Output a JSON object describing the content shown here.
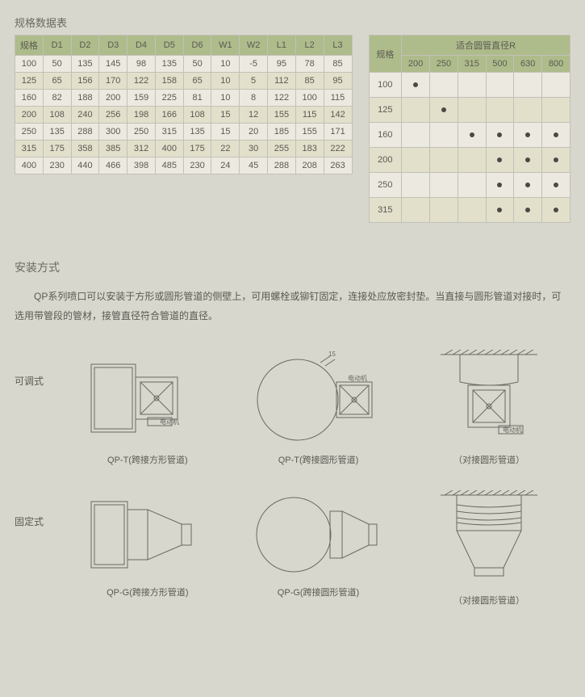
{
  "specTable": {
    "title": "规格数据表",
    "headers": [
      "规格",
      "D1",
      "D2",
      "D3",
      "D4",
      "D5",
      "D6",
      "W1",
      "W2",
      "L1",
      "L2",
      "L3"
    ],
    "rows": [
      [
        "100",
        "50",
        "135",
        "145",
        "98",
        "135",
        "50",
        "10",
        "-5",
        "95",
        "78",
        "85"
      ],
      [
        "125",
        "65",
        "156",
        "170",
        "122",
        "158",
        "65",
        "10",
        "5",
        "112",
        "85",
        "95"
      ],
      [
        "160",
        "82",
        "188",
        "200",
        "159",
        "225",
        "81",
        "10",
        "8",
        "122",
        "100",
        "115"
      ],
      [
        "200",
        "108",
        "240",
        "256",
        "198",
        "166",
        "108",
        "15",
        "12",
        "155",
        "115",
        "142"
      ],
      [
        "250",
        "135",
        "288",
        "300",
        "250",
        "315",
        "135",
        "15",
        "20",
        "185",
        "155",
        "171"
      ],
      [
        "315",
        "175",
        "358",
        "385",
        "312",
        "400",
        "175",
        "22",
        "30",
        "255",
        "183",
        "222"
      ],
      [
        "400",
        "230",
        "440",
        "466",
        "398",
        "485",
        "230",
        "24",
        "45",
        "288",
        "208",
        "263"
      ]
    ],
    "altRows": [
      1,
      3,
      5
    ]
  },
  "rTable": {
    "cornerLabel": "规格",
    "headerTop": "适合圆管直径R",
    "rHeaders": [
      "200",
      "250",
      "315",
      "500",
      "630",
      "800"
    ],
    "rowLabels": [
      "100",
      "125",
      "160",
      "200",
      "250",
      "315"
    ],
    "dots": [
      [
        true,
        false,
        false,
        false,
        false,
        false
      ],
      [
        false,
        true,
        false,
        false,
        false,
        false
      ],
      [
        false,
        false,
        true,
        true,
        true,
        true
      ],
      [
        false,
        false,
        false,
        true,
        true,
        true
      ],
      [
        false,
        false,
        false,
        true,
        true,
        true
      ],
      [
        false,
        false,
        false,
        true,
        true,
        true
      ]
    ],
    "altRows": [
      1,
      3,
      5
    ]
  },
  "section": {
    "title": "安装方式",
    "text": "QP系列喷口可以安装于方形或圆形管道的侧壁上，可用螺栓或铆钉固定，连接处应放密封垫。当直接与圆形管道对接时，可选用带管段的管材，接管直径符合管道的直径。"
  },
  "diagrams": {
    "rowLabels": [
      "可调式",
      "固定式"
    ],
    "captions": [
      "QP-T(跨接方形管道)",
      "QP-T(跨接圆形管道)",
      "（对接圆形管道）",
      "QP-G(跨接方形管道)",
      "QP-G(跨接圆形管道)",
      "（对接圆形管道）"
    ],
    "svgLabels": {
      "motor": "电动机",
      "dim15": "15"
    }
  },
  "style": {
    "bg": "#d8d7ce",
    "headerBg": "#aebb8b",
    "rowBg": "#eceae0",
    "rowAltBg": "#e2dfcb",
    "border": "#c2c1b7",
    "stroke": "#6a6a62"
  }
}
